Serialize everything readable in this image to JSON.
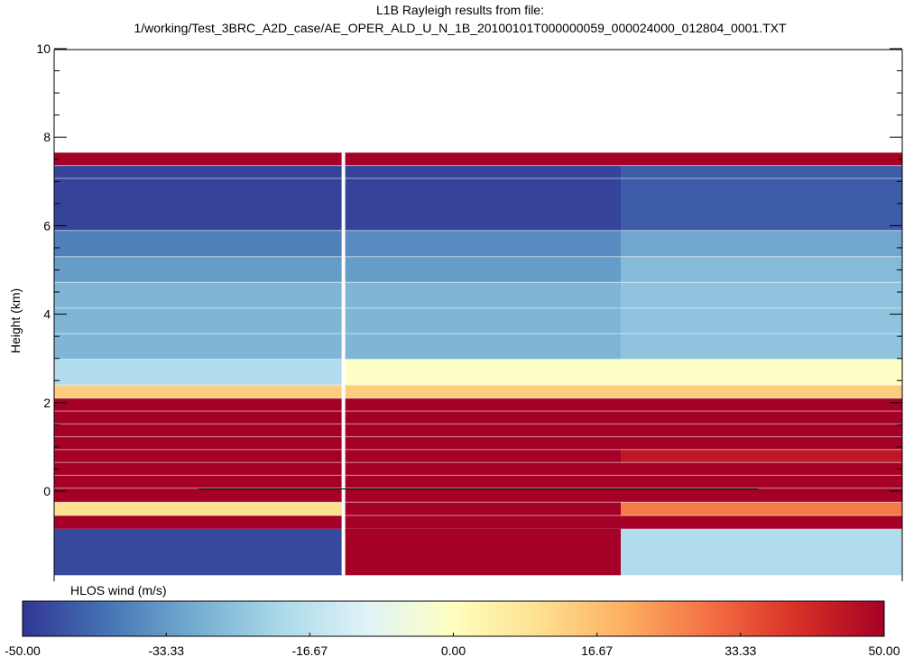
{
  "chart_data": {
    "type": "heatmap",
    "title_line1": "L1B Rayleigh  results from file:",
    "title_line2": "1/working/Test_3BRC_A2D_case/AE_OPER_ALD_U_N_1B_20100101T000000059_000024000_012804_0001.TXT",
    "ylabel": "Height (km)",
    "ylim": [
      -2,
      10
    ],
    "yticks": [
      0,
      2,
      4,
      6,
      8,
      10
    ],
    "ytick_labels": [
      "0",
      "2",
      "4",
      "6",
      "8",
      "10"
    ],
    "xlim": [
      0,
      1
    ],
    "colorbar": {
      "label": "HLOS wind (m/s)",
      "range": [
        -50,
        50
      ],
      "ticks": [
        -50,
        -33.33,
        -16.67,
        0,
        16.67,
        33.33,
        50
      ],
      "tick_labels": [
        "-50.00",
        "-33.33",
        "-16.67",
        "0.00",
        "16.67",
        "33.33",
        "50.00"
      ],
      "colormap": "RdYlBu_r",
      "stops": [
        "#313695",
        "#4575b4",
        "#74add1",
        "#abd9e9",
        "#e0f3f8",
        "#ffffbf",
        "#fee090",
        "#fdae61",
        "#f46d43",
        "#d73027",
        "#a50026"
      ]
    },
    "columns": [
      {
        "x_range": [
          0,
          0.3411
        ],
        "cells": [
          {
            "bottom": -1.9,
            "top": -0.85,
            "value": -47
          },
          {
            "bottom": -0.85,
            "top": -0.55,
            "value": 50
          },
          {
            "bottom": -0.55,
            "top": -0.25,
            "value": 10
          },
          {
            "bottom": -0.25,
            "top": 2.1,
            "value": 50
          },
          {
            "bottom": 2.1,
            "top": 2.4,
            "value": 14
          },
          {
            "bottom": 2.4,
            "top": 2.98,
            "value": -19
          },
          {
            "bottom": 2.98,
            "top": 4.72,
            "value": -28
          },
          {
            "bottom": 4.72,
            "top": 5.3,
            "value": -33
          },
          {
            "bottom": 5.3,
            "top": 5.89,
            "value": -38
          },
          {
            "bottom": 5.89,
            "top": 7.36,
            "value": -48
          },
          {
            "bottom": 7.36,
            "top": 7.65,
            "value": 50
          }
        ]
      },
      {
        "x_range": [
          0.3411,
          0.6681
        ],
        "cells": [
          {
            "bottom": -1.9,
            "top": -0.85,
            "value": 50
          },
          {
            "bottom": -0.85,
            "top": 2.1,
            "value": 50
          },
          {
            "bottom": 2.1,
            "top": 2.4,
            "value": 14
          },
          {
            "bottom": 2.4,
            "top": 2.98,
            "value": -1
          },
          {
            "bottom": 2.98,
            "top": 4.72,
            "value": -28
          },
          {
            "bottom": 4.72,
            "top": 5.3,
            "value": -33
          },
          {
            "bottom": 5.3,
            "top": 5.89,
            "value": -36
          },
          {
            "bottom": 5.89,
            "top": 7.36,
            "value": -48
          },
          {
            "bottom": 7.36,
            "top": 7.65,
            "value": 50
          }
        ]
      },
      {
        "x_range": [
          0.6681,
          1
        ],
        "cells": [
          {
            "bottom": -1.9,
            "top": -0.85,
            "value": -19
          },
          {
            "bottom": -0.85,
            "top": -0.55,
            "value": 50
          },
          {
            "bottom": -0.55,
            "top": -0.25,
            "value": 28
          },
          {
            "bottom": -0.25,
            "top": 0.65,
            "value": 50
          },
          {
            "bottom": 0.65,
            "top": 0.94,
            "value": 45
          },
          {
            "bottom": 0.94,
            "top": 2.1,
            "value": 50
          },
          {
            "bottom": 2.1,
            "top": 2.4,
            "value": 14
          },
          {
            "bottom": 2.4,
            "top": 2.98,
            "value": -1
          },
          {
            "bottom": 2.98,
            "top": 4.72,
            "value": -25
          },
          {
            "bottom": 4.72,
            "top": 5.3,
            "value": -27
          },
          {
            "bottom": 5.3,
            "top": 5.89,
            "value": -31
          },
          {
            "bottom": 5.89,
            "top": 7.36,
            "value": -44
          },
          {
            "bottom": 7.36,
            "top": 7.65,
            "value": 50
          }
        ]
      }
    ],
    "bin_boundaries_km": [
      -0.55,
      -0.25,
      0.07,
      0.36,
      0.65,
      0.94,
      1.23,
      1.52,
      1.81,
      2.1,
      2.4,
      2.98,
      3.56,
      4.14,
      4.72,
      5.3,
      5.89,
      7.07,
      7.36
    ],
    "vertical_separator_x": 0.3411,
    "zero_line": {
      "x_range": [
        0.17,
        0.83
      ],
      "y": 0.05
    }
  }
}
